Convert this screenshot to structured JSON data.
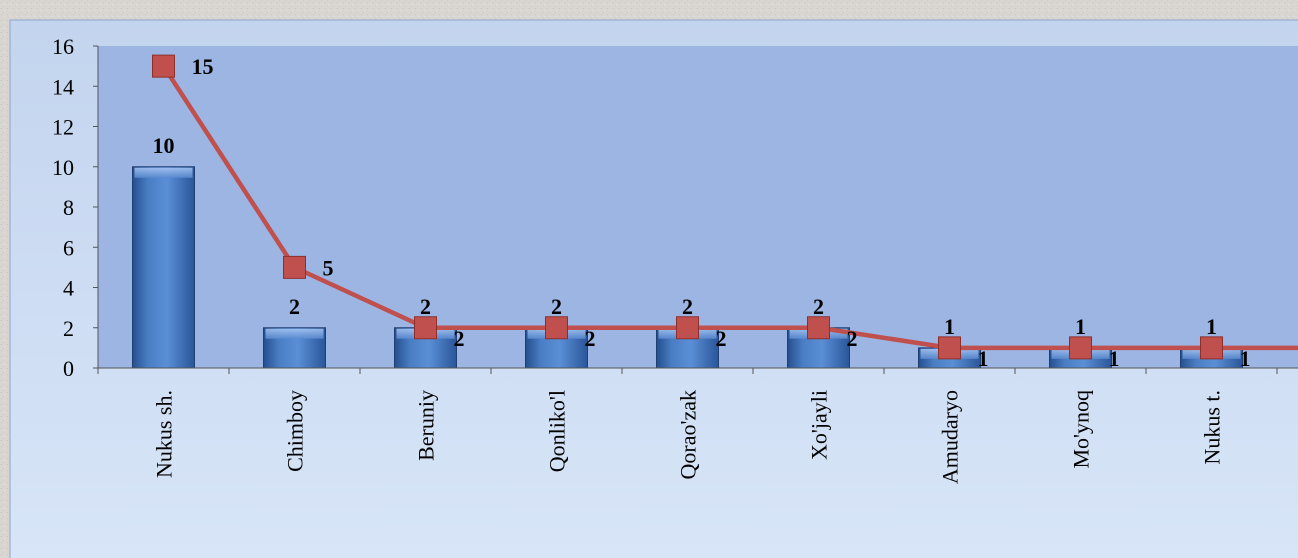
{
  "colors": {
    "page_texture": "#d9d6d2",
    "panel_top": "#c6d6ef",
    "panel_bottom": "#d7e4f7",
    "plot_fill": "#9db6e3",
    "bar_fill": "#3d6fb6",
    "bar_highlight": "#8fb4ea",
    "line": "#c0504d",
    "marker": "#c0504d",
    "axis": "#555555",
    "text": "#000000"
  },
  "chart_data": {
    "type": "bar",
    "title": "",
    "xlabel": "",
    "ylabel": "",
    "ylim": [
      0,
      16
    ],
    "yticks": [
      0,
      2,
      4,
      6,
      8,
      10,
      12,
      14,
      16
    ],
    "grid": false,
    "legend": "none",
    "categories": [
      "Nukus sh.",
      "Chimboy",
      "Beruniy",
      "Qonliko'l",
      "Qorao'zak",
      "Xo'jayli",
      "Amudaryo",
      "Mo'ynoq",
      "Nukus t."
    ],
    "series": [
      {
        "type": "bar",
        "values": [
          10,
          2,
          2,
          2,
          2,
          2,
          1,
          1,
          1
        ],
        "labels": [
          "10",
          "2",
          "2",
          "2",
          "2",
          "2",
          "1",
          "1",
          "1"
        ]
      },
      {
        "type": "line",
        "values": [
          15,
          5,
          2,
          2,
          2,
          2,
          1,
          1,
          1
        ],
        "labels": [
          "15",
          "5",
          "2",
          "2",
          "2",
          "2",
          "1",
          "1",
          "1"
        ]
      }
    ]
  }
}
